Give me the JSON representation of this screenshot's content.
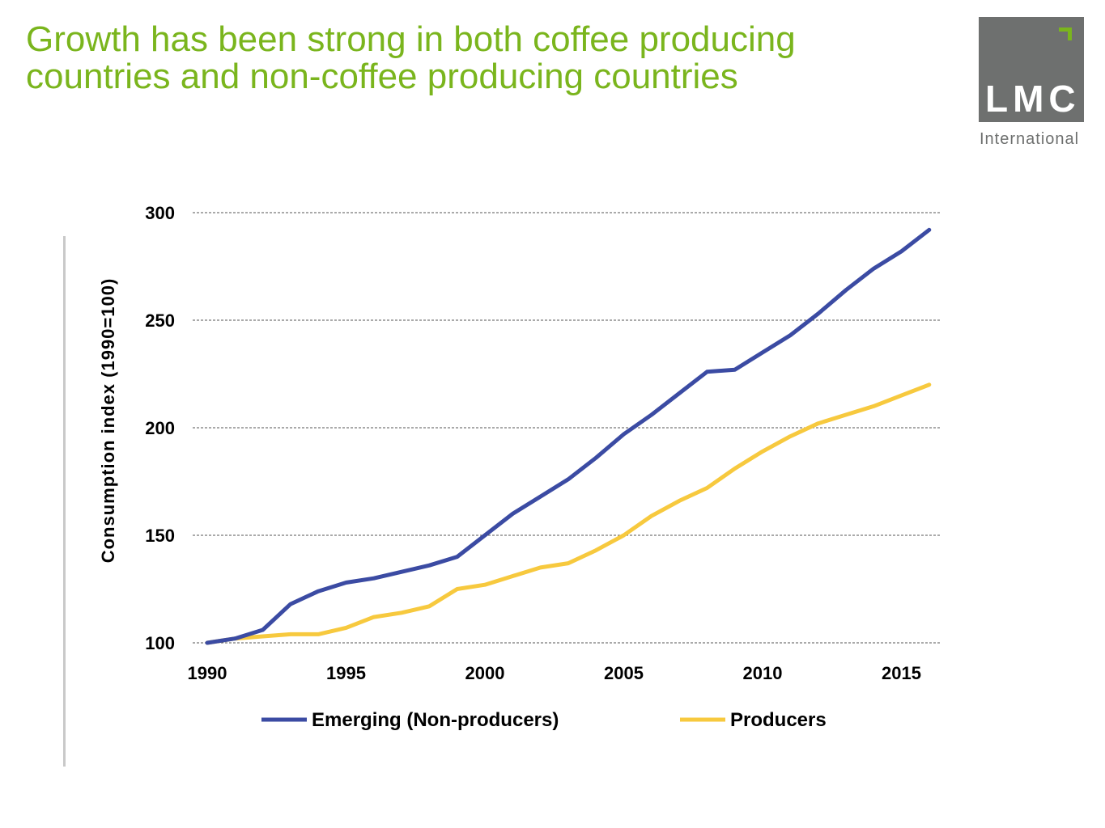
{
  "title": "Growth has been strong in both coffee producing countries and non-coffee producing countries",
  "logo": {
    "word": "LMC",
    "sub": "International",
    "box_color": "#6e706f",
    "accent_color": "#7ab51d"
  },
  "chart_data": {
    "type": "line",
    "ylabel": "Consumption index (1990=100)",
    "xlabel": "",
    "xlim": [
      1990,
      2016
    ],
    "ylim": [
      100,
      300
    ],
    "yticks": [
      100,
      150,
      200,
      250,
      300
    ],
    "xticks": [
      1990,
      1995,
      2000,
      2005,
      2010,
      2015
    ],
    "grid": "horizontal dashed",
    "legend_position": "bottom",
    "x": [
      1990,
      1991,
      1992,
      1993,
      1994,
      1995,
      1996,
      1997,
      1998,
      1999,
      2000,
      2001,
      2002,
      2003,
      2004,
      2005,
      2006,
      2007,
      2008,
      2009,
      2010,
      2011,
      2012,
      2013,
      2014,
      2015,
      2016
    ],
    "series": [
      {
        "name": "Emerging (Non-producers)",
        "color": "#3b4ba3",
        "values": [
          100,
          102,
          106,
          118,
          124,
          128,
          130,
          133,
          136,
          140,
          150,
          160,
          168,
          176,
          186,
          197,
          206,
          216,
          226,
          227,
          235,
          243,
          253,
          264,
          274,
          282,
          292
        ]
      },
      {
        "name": "Producers",
        "color": "#f7c93e",
        "values": [
          100,
          102,
          103,
          104,
          104,
          107,
          112,
          114,
          117,
          125,
          127,
          131,
          135,
          137,
          143,
          150,
          159,
          166,
          172,
          181,
          189,
          196,
          202,
          206,
          210,
          215,
          220
        ]
      }
    ]
  }
}
